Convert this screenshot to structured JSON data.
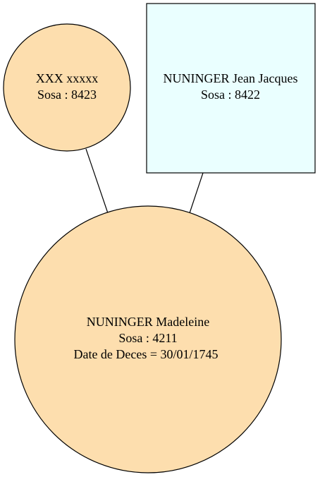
{
  "colors": {
    "female": "#fddeae",
    "male": "#eaffff",
    "stroke": "#000000",
    "background": "#ffffff"
  },
  "nodes": {
    "mother": {
      "name": "XXX xxxxx",
      "sosa": "Sosa : 8423"
    },
    "father": {
      "name": "NUNINGER Jean Jacques",
      "sosa": "Sosa : 8422"
    },
    "child": {
      "name": "NUNINGER Madeleine",
      "sosa": "Sosa : 4211",
      "death": "Date de Deces = 30/01/1745"
    }
  },
  "edges": [
    {
      "from": "mother",
      "to": "child"
    },
    {
      "from": "father",
      "to": "child"
    }
  ]
}
